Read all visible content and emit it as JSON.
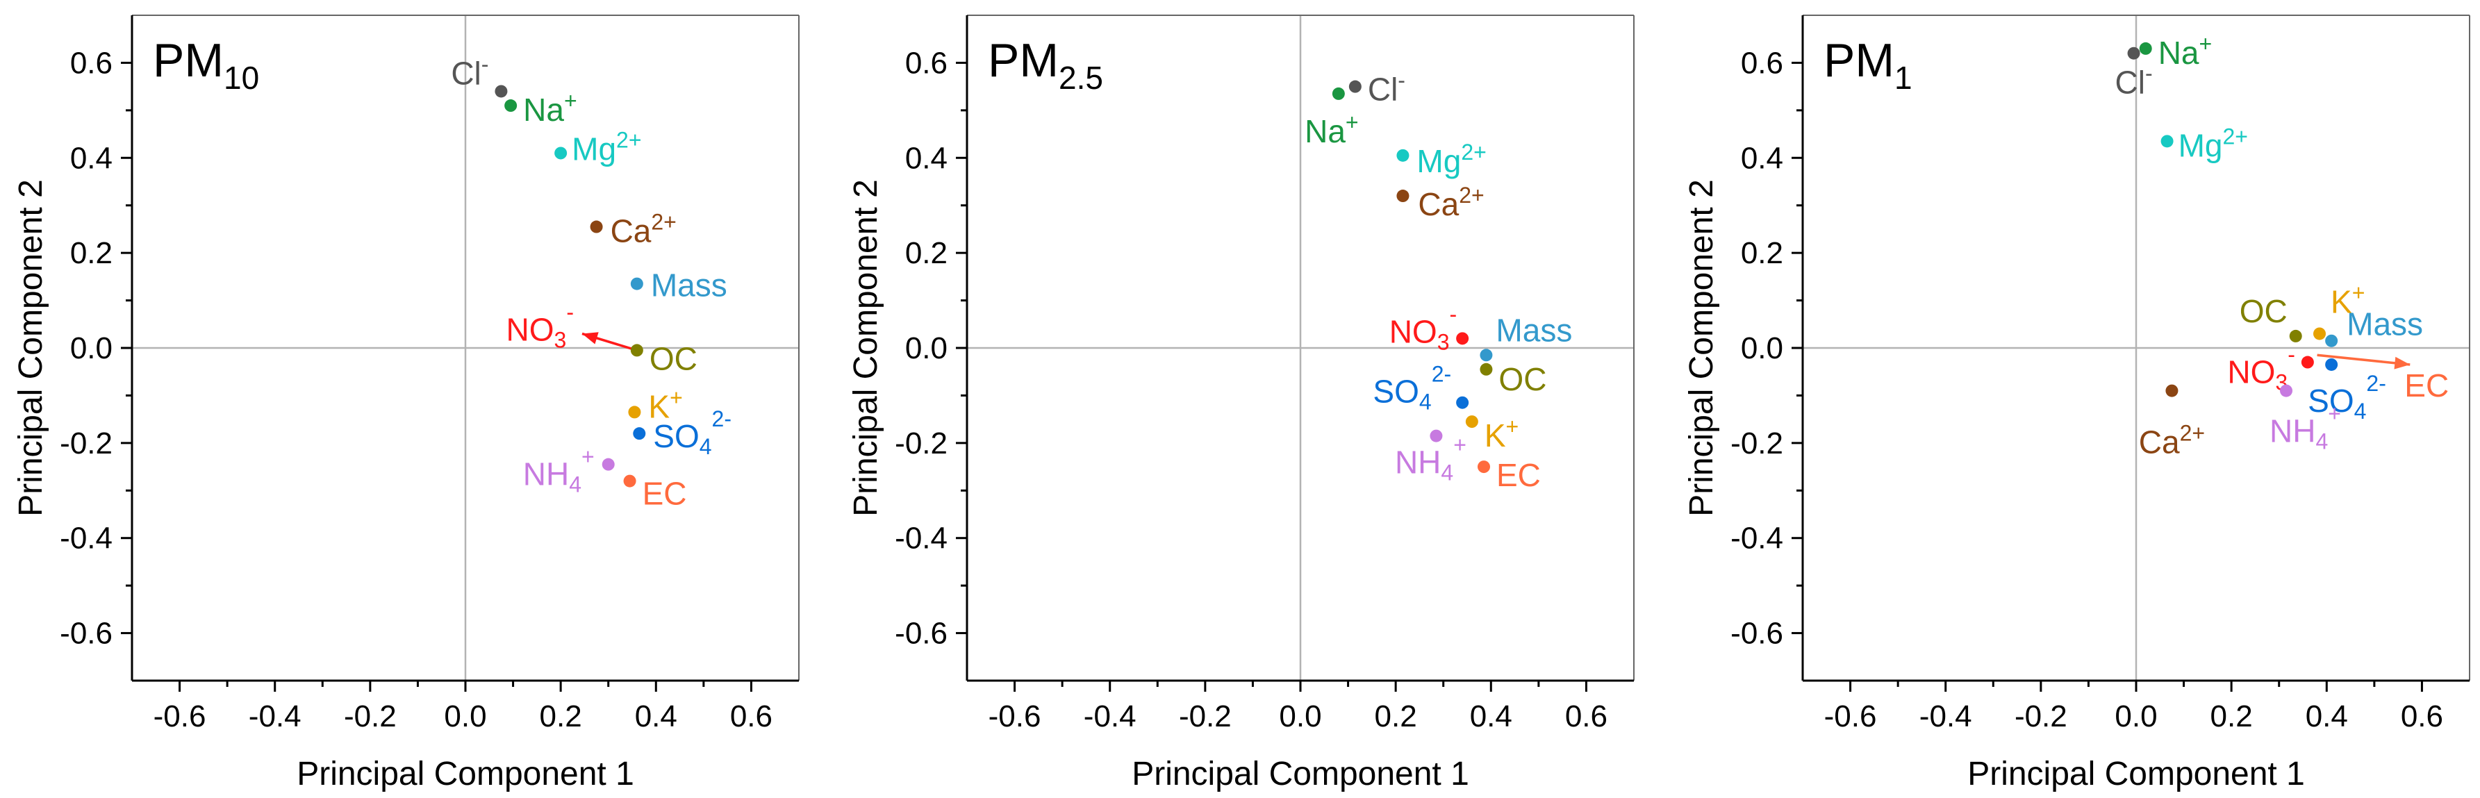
{
  "chart_data": [
    {
      "type": "scatter",
      "title": "PM",
      "title_sub": "10",
      "xlabel": "Principal Component 1",
      "ylabel": "Principal Component 2",
      "xlim": [
        -0.7,
        0.7
      ],
      "ylim": [
        -0.7,
        0.7
      ],
      "xticks": [
        "-0.6",
        "-0.4",
        "-0.2",
        "0.0",
        "0.2",
        "0.4",
        "0.6"
      ],
      "yticks": [
        "-0.6",
        "-0.4",
        "-0.2",
        "0.0",
        "0.2",
        "0.4",
        "0.6"
      ],
      "points": [
        {
          "base": "Cl",
          "sup": "-",
          "sub": "",
          "x": 0.075,
          "y": 0.54,
          "color": "#555555"
        },
        {
          "base": "Na",
          "sup": "+",
          "sub": "",
          "x": 0.095,
          "y": 0.51,
          "color": "#1a9641"
        },
        {
          "base": "Mg",
          "sup": "2+",
          "sub": "",
          "x": 0.2,
          "y": 0.41,
          "color": "#17c9c2"
        },
        {
          "base": "Ca",
          "sup": "2+",
          "sub": "",
          "x": 0.275,
          "y": 0.255,
          "color": "#8b4513"
        },
        {
          "base": "Mass",
          "sup": "",
          "sub": "",
          "x": 0.36,
          "y": 0.135,
          "color": "#3399cc"
        },
        {
          "base": "OC",
          "sup": "",
          "sub": "",
          "x": 0.36,
          "y": -0.005,
          "color": "#808000"
        },
        {
          "base": "K",
          "sup": "+",
          "sub": "",
          "x": 0.355,
          "y": -0.135,
          "color": "#e6a100"
        },
        {
          "base": "SO",
          "sup": "2-",
          "sub": "4",
          "x": 0.365,
          "y": -0.18,
          "color": "#0a6fd8"
        },
        {
          "base": "NH",
          "sup": "+",
          "sub": "4",
          "x": 0.3,
          "y": -0.245,
          "color": "#c77ae0"
        },
        {
          "base": "EC",
          "sup": "",
          "sub": "",
          "x": 0.345,
          "y": -0.28,
          "color": "#ff6a3d"
        }
      ],
      "arrows": [
        {
          "base": "NO",
          "sup": "-",
          "sub": "3",
          "x": 0.245,
          "y": 0.03,
          "color": "#ff1a1a"
        }
      ]
    },
    {
      "type": "scatter",
      "title": "PM",
      "title_sub": "2.5",
      "xlabel": "Principal Component 1",
      "ylabel": "Principal Component 2",
      "xlim": [
        -0.7,
        0.7
      ],
      "ylim": [
        -0.7,
        0.7
      ],
      "xticks": [
        "-0.6",
        "-0.4",
        "-0.2",
        "0.0",
        "0.2",
        "0.4",
        "0.6"
      ],
      "yticks": [
        "-0.6",
        "-0.4",
        "-0.2",
        "0.0",
        "0.2",
        "0.4",
        "0.6"
      ],
      "points": [
        {
          "base": "Cl",
          "sup": "-",
          "sub": "",
          "x": 0.115,
          "y": 0.55,
          "color": "#555555"
        },
        {
          "base": "Na",
          "sup": "+",
          "sub": "",
          "x": 0.08,
          "y": 0.535,
          "color": "#1a9641"
        },
        {
          "base": "Mg",
          "sup": "2+",
          "sub": "",
          "x": 0.215,
          "y": 0.405,
          "color": "#17c9c2"
        },
        {
          "base": "Ca",
          "sup": "2+",
          "sub": "",
          "x": 0.215,
          "y": 0.32,
          "color": "#8b4513"
        },
        {
          "base": "Mass",
          "sup": "",
          "sub": "",
          "x": 0.39,
          "y": -0.015,
          "color": "#3399cc"
        },
        {
          "base": "NO",
          "sup": "-",
          "sub": "3",
          "x": 0.34,
          "y": 0.02,
          "color": "#ff1a1a"
        },
        {
          "base": "OC",
          "sup": "",
          "sub": "",
          "x": 0.39,
          "y": -0.045,
          "color": "#808000"
        },
        {
          "base": "SO",
          "sup": "2-",
          "sub": "4",
          "x": 0.34,
          "y": -0.115,
          "color": "#0a6fd8"
        },
        {
          "base": "K",
          "sup": "+",
          "sub": "",
          "x": 0.36,
          "y": -0.155,
          "color": "#e6a100"
        },
        {
          "base": "NH",
          "sup": "+",
          "sub": "4",
          "x": 0.285,
          "y": -0.185,
          "color": "#c77ae0"
        },
        {
          "base": "EC",
          "sup": "",
          "sub": "",
          "x": 0.385,
          "y": -0.25,
          "color": "#ff6a3d"
        }
      ],
      "arrows": []
    },
    {
      "type": "scatter",
      "title": "PM",
      "title_sub": "1",
      "xlabel": "Principal Component 1",
      "ylabel": "Principal Component 2",
      "xlim": [
        -0.7,
        0.7
      ],
      "ylim": [
        -0.7,
        0.7
      ],
      "xticks": [
        "-0.6",
        "-0.4",
        "-0.2",
        "0.0",
        "0.2",
        "0.4",
        "0.6"
      ],
      "yticks": [
        "-0.6",
        "-0.4",
        "-0.2",
        "0.0",
        "0.2",
        "0.4",
        "0.6"
      ],
      "points": [
        {
          "base": "Na",
          "sup": "+",
          "sub": "",
          "x": 0.02,
          "y": 0.63,
          "color": "#1a9641"
        },
        {
          "base": "Cl",
          "sup": "-",
          "sub": "",
          "x": -0.005,
          "y": 0.62,
          "color": "#555555"
        },
        {
          "base": "Mg",
          "sup": "2+",
          "sub": "",
          "x": 0.065,
          "y": 0.435,
          "color": "#17c9c2"
        },
        {
          "base": "OC",
          "sup": "",
          "sub": "",
          "x": 0.335,
          "y": 0.025,
          "color": "#808000"
        },
        {
          "base": "K",
          "sup": "+",
          "sub": "",
          "x": 0.385,
          "y": 0.03,
          "color": "#e6a100"
        },
        {
          "base": "Mass",
          "sup": "",
          "sub": "",
          "x": 0.41,
          "y": 0.015,
          "color": "#3399cc"
        },
        {
          "base": "NO",
          "sup": "-",
          "sub": "3",
          "x": 0.36,
          "y": -0.03,
          "color": "#ff1a1a"
        },
        {
          "base": "SO",
          "sup": "2-",
          "sub": "4",
          "x": 0.41,
          "y": -0.035,
          "color": "#0a6fd8"
        },
        {
          "base": "Ca",
          "sup": "2+",
          "sub": "",
          "x": 0.075,
          "y": -0.09,
          "color": "#8b4513"
        },
        {
          "base": "NH",
          "sup": "+",
          "sub": "4",
          "x": 0.315,
          "y": -0.09,
          "color": "#c77ae0"
        }
      ],
      "arrows": [
        {
          "base": "EC",
          "sup": "",
          "sub": "",
          "x": 0.575,
          "y": -0.035,
          "color": "#ff6a3d"
        }
      ]
    }
  ]
}
